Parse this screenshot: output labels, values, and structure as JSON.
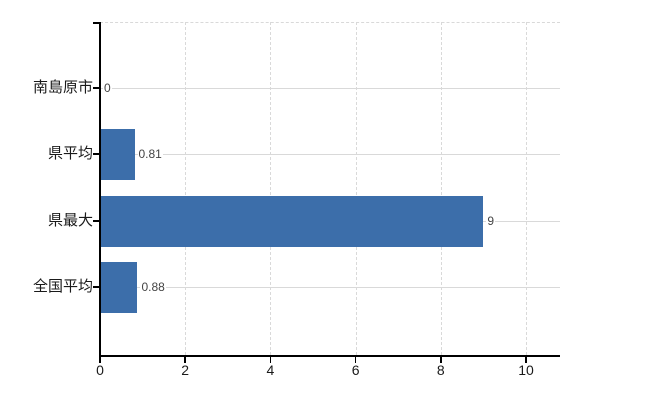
{
  "chart_data": {
    "type": "bar",
    "orientation": "horizontal",
    "title": "",
    "xlabel": "",
    "ylabel": "",
    "categories": [
      "南島原市",
      "県平均",
      "県最大",
      "全国平均"
    ],
    "values": [
      0,
      0.81,
      9,
      0.88
    ],
    "value_labels": [
      "0",
      "0.81",
      "9",
      "0.88"
    ],
    "x_ticks": [
      0,
      2,
      4,
      6,
      8,
      10
    ],
    "x_tick_labels": [
      "0",
      "2",
      "4",
      "6",
      "8",
      "10"
    ],
    "xlim": [
      0,
      10.8
    ],
    "grid": "on",
    "legend": "none",
    "colors": {
      "bar": "#3c6eaa",
      "grid": "#d9d9d9",
      "axis": "#000000",
      "tick_label": "#1a1a1a",
      "value_label": "#444444",
      "background": "#ffffff"
    }
  }
}
